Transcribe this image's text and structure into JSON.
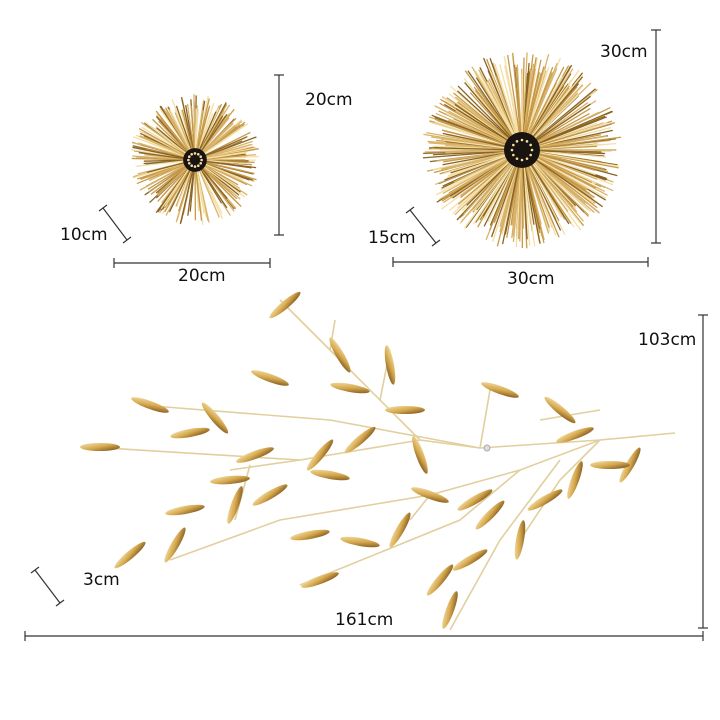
{
  "products": [
    {
      "name": "small-sphere",
      "height": "20cm",
      "depth": "10cm",
      "width": "20cm"
    },
    {
      "name": "large-sphere",
      "height": "30cm",
      "depth": "15cm",
      "width": "30cm"
    },
    {
      "name": "branch",
      "height": "103cm",
      "depth": "3cm",
      "width": "161cm"
    }
  ],
  "colors": {
    "gold": "#d9b36a",
    "gold_light": "#f3dfa6",
    "gold_dark": "#8a6424",
    "core": "#1a1410",
    "dimension_line": "#333333"
  }
}
